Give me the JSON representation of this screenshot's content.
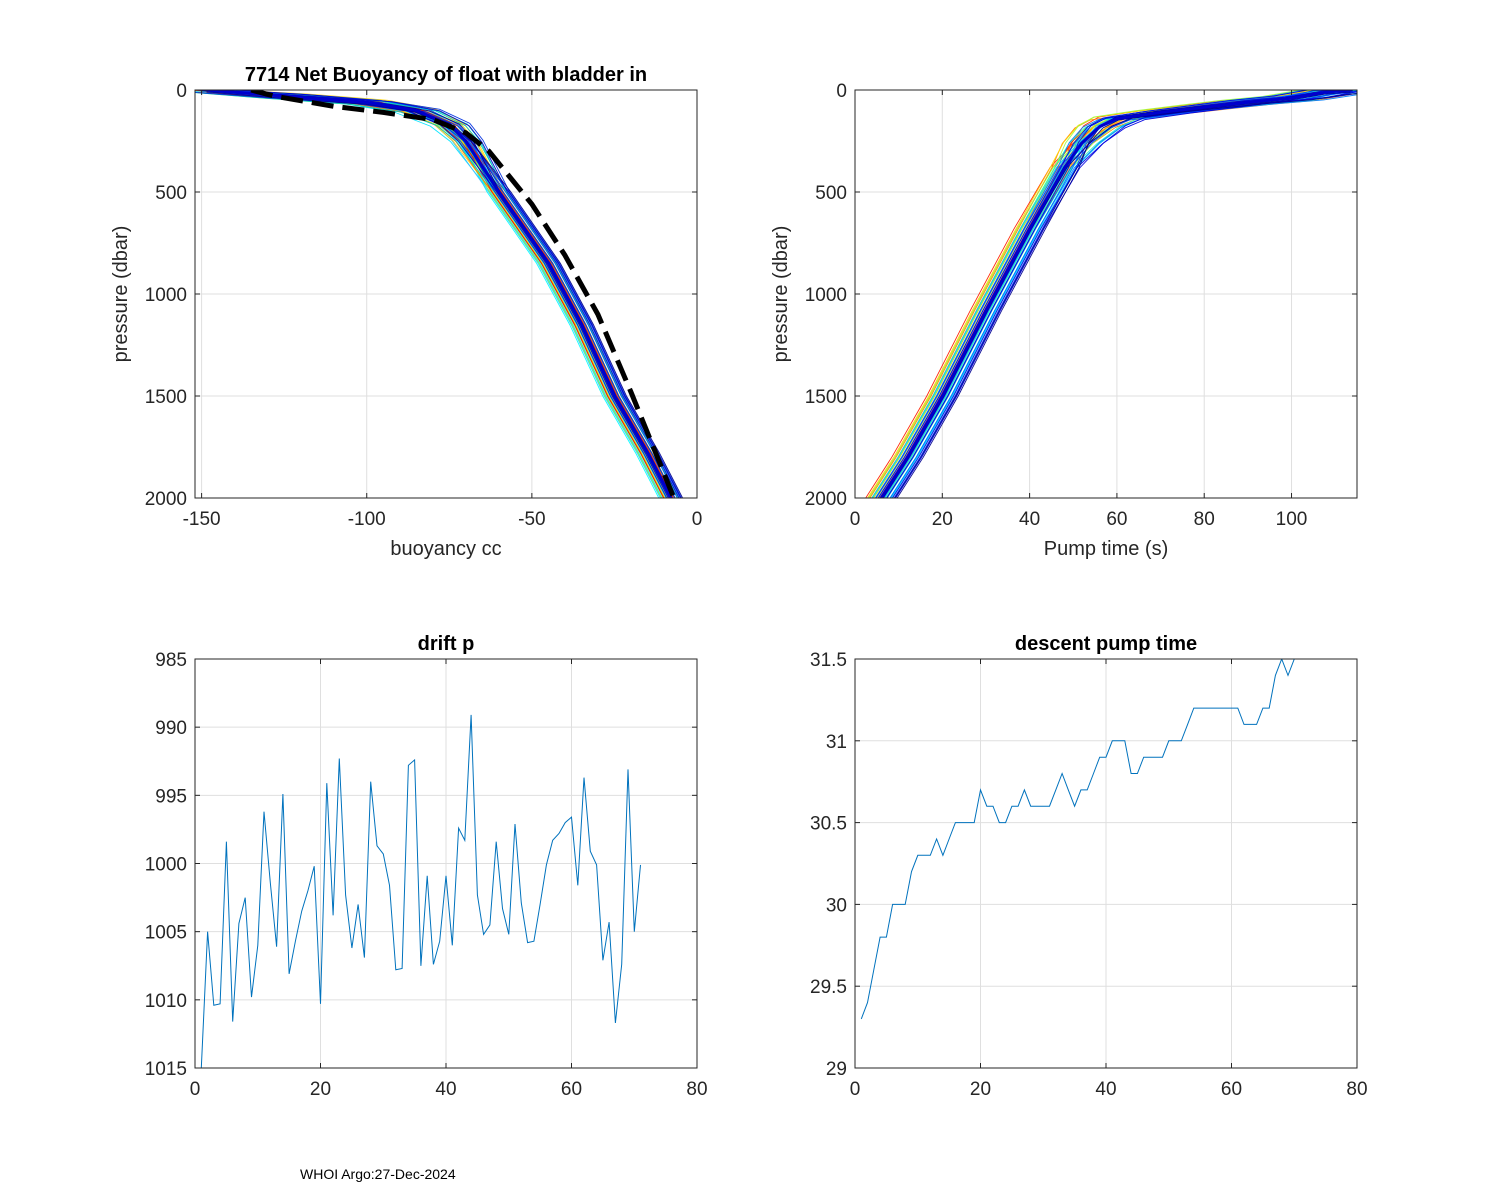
{
  "footer": "WHOI Argo:27-Dec-2024",
  "chart_data": [
    {
      "type": "line",
      "title": "7714 Net Buoyancy of float with bladder in",
      "xlabel": "buoyancy cc",
      "ylabel": "pressure (dbar)",
      "xlim": [
        -152,
        0
      ],
      "ylim": [
        2000,
        0
      ],
      "xticks": [
        -150,
        -100,
        -50,
        0
      ],
      "yticks": [
        0,
        500,
        1000,
        1500,
        2000
      ],
      "grid": true,
      "series_colors": [
        "#00ffff",
        "#00e5ff",
        "#40c0ff",
        "#8fff40",
        "#ffd400",
        "#ff6a00",
        "#e02000",
        "#00c8c0",
        "#0060ff",
        "#0030e0",
        "#0000c8",
        "#00008f"
      ],
      "profile_shape": [
        [
          -148,
          0
        ],
        [
          -125,
          30
        ],
        [
          -100,
          60
        ],
        [
          -85,
          100
        ],
        [
          -75,
          170
        ],
        [
          -70,
          250
        ],
        [
          -60,
          500
        ],
        [
          -45,
          850
        ],
        [
          -35,
          1150
        ],
        [
          -25,
          1500
        ],
        [
          -15,
          1780
        ],
        [
          -8,
          2000
        ]
      ],
      "reference_line": {
        "name": "dashed reference",
        "points": [
          [
            -135,
            0
          ],
          [
            -128,
            30
          ],
          [
            -110,
            80
          ],
          [
            -95,
            110
          ],
          [
            -80,
            145
          ],
          [
            -70,
            210
          ],
          [
            -63,
            300
          ],
          [
            -50,
            560
          ],
          [
            -40,
            810
          ],
          [
            -30,
            1100
          ],
          [
            -20,
            1480
          ],
          [
            -13,
            1760
          ],
          [
            -7,
            2000
          ]
        ]
      }
    },
    {
      "type": "line",
      "title": "",
      "xlabel": "Pump time (s)",
      "ylabel": "pressure (dbar)",
      "xlim": [
        0,
        115
      ],
      "ylim": [
        2000,
        0
      ],
      "xticks": [
        0,
        20,
        40,
        60,
        80,
        100
      ],
      "yticks": [
        0,
        500,
        1000,
        1500,
        2000
      ],
      "grid": true,
      "series_colors": [
        "#ff2000",
        "#ff8000",
        "#ffd400",
        "#a0ff40",
        "#20ffc0",
        "#00c8ff",
        "#0080ff",
        "#0040ff",
        "#0000e0",
        "#00008f"
      ],
      "profile_shape": [
        [
          6,
          2000
        ],
        [
          12,
          1800
        ],
        [
          20,
          1500
        ],
        [
          30,
          1080
        ],
        [
          40,
          680
        ],
        [
          48,
          380
        ],
        [
          52,
          260
        ],
        [
          56,
          180
        ],
        [
          60,
          140
        ],
        [
          70,
          110
        ],
        [
          80,
          85
        ],
        [
          90,
          60
        ],
        [
          100,
          40
        ],
        [
          108,
          10
        ],
        [
          114,
          0
        ]
      ]
    },
    {
      "type": "line",
      "title": "drift p",
      "xlabel": "",
      "ylabel": "",
      "xlim": [
        0,
        80
      ],
      "ylim": [
        1015,
        985
      ],
      "xticks": [
        0,
        20,
        40,
        60,
        80
      ],
      "yticks": [
        985,
        990,
        995,
        1000,
        1005,
        1010,
        1015
      ],
      "grid": true,
      "color": "#0072bd",
      "x": [
        1,
        2,
        3,
        4,
        5,
        6,
        7,
        8,
        9,
        10,
        11,
        12,
        13,
        14,
        15,
        16,
        17,
        18,
        19,
        20,
        21,
        22,
        23,
        24,
        25,
        26,
        27,
        28,
        29,
        30,
        31,
        32,
        33,
        34,
        35,
        36,
        37,
        38,
        39,
        40,
        41,
        42,
        43,
        44,
        45,
        46,
        47,
        48,
        49,
        50,
        51,
        52,
        53,
        54,
        55,
        56,
        57,
        58,
        59,
        60,
        61,
        62,
        63,
        64,
        65,
        66,
        67,
        68,
        69,
        70,
        71
      ],
      "values": [
        1015,
        1005,
        1010.4,
        1010.3,
        998.4,
        1011.6,
        1004.4,
        1002.5,
        1009.8,
        1006,
        996.2,
        1001.4,
        1006.1,
        994.9,
        1008.1,
        1005.7,
        1003.5,
        1002,
        1000.2,
        1010.3,
        994.1,
        1003.8,
        992.3,
        1002.3,
        1006.2,
        1003,
        1006.9,
        994,
        998.7,
        999.3,
        1001.6,
        1007.8,
        1007.7,
        992.8,
        992.4,
        1007.5,
        1000.9,
        1007.4,
        1005.7,
        1000.9,
        1006,
        997.4,
        998.3,
        989.1,
        1002.3,
        1005.2,
        1004.5,
        998.4,
        1003.3,
        1005.2,
        997.1,
        1002.9,
        1005.8,
        1005.7,
        1003,
        1000.1,
        998.3,
        997.8,
        997,
        996.6,
        1001.6,
        993.7,
        999.1,
        1000.1,
        1007.1,
        1004.3,
        1011.7,
        1007.4,
        993.1,
        1005,
        1000.1
      ]
    },
    {
      "type": "line",
      "title": "descent pump time",
      "xlabel": "",
      "ylabel": "",
      "xlim": [
        0,
        80
      ],
      "ylim": [
        29,
        31.5
      ],
      "xticks": [
        0,
        20,
        40,
        60,
        80
      ],
      "yticks": [
        29,
        29.5,
        30,
        30.5,
        31,
        31.5
      ],
      "grid": true,
      "color": "#0072bd",
      "x": [
        1,
        2,
        3,
        4,
        5,
        6,
        7,
        8,
        9,
        10,
        11,
        12,
        13,
        14,
        15,
        16,
        17,
        18,
        19,
        20,
        21,
        22,
        23,
        24,
        25,
        26,
        27,
        28,
        29,
        30,
        31,
        32,
        33,
        34,
        35,
        36,
        37,
        38,
        39,
        40,
        41,
        42,
        43,
        44,
        45,
        46,
        47,
        48,
        49,
        50,
        51,
        52,
        53,
        54,
        55,
        56,
        57,
        58,
        59,
        60,
        61,
        62,
        63,
        64,
        65,
        66,
        67,
        68,
        69,
        70,
        71
      ],
      "values": [
        29.3,
        29.4,
        29.6,
        29.8,
        29.8,
        30,
        30,
        30,
        30.2,
        30.3,
        30.3,
        30.3,
        30.4,
        30.3,
        30.4,
        30.5,
        30.5,
        30.5,
        30.5,
        30.7,
        30.6,
        30.6,
        30.5,
        30.5,
        30.6,
        30.6,
        30.7,
        30.6,
        30.6,
        30.6,
        30.6,
        30.7,
        30.8,
        30.7,
        30.6,
        30.7,
        30.7,
        30.8,
        30.9,
        30.9,
        31,
        31,
        31,
        30.8,
        30.8,
        30.9,
        30.9,
        30.9,
        30.9,
        31,
        31,
        31,
        31.1,
        31.2,
        31.2,
        31.2,
        31.2,
        31.2,
        31.2,
        31.2,
        31.2,
        31.1,
        31.1,
        31.1,
        31.2,
        31.2,
        31.4,
        31.5,
        31.4,
        31.5,
        31.5
      ]
    }
  ]
}
